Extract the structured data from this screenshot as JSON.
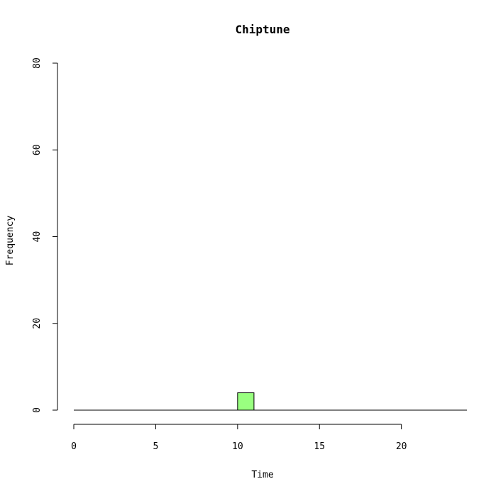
{
  "chart_data": {
    "type": "bar",
    "title": "Chiptune",
    "xlabel": "Time",
    "ylabel": "Frequency",
    "xlim": [
      0,
      24
    ],
    "ylim": [
      0,
      80
    ],
    "x_ticks": [
      0,
      5,
      10,
      15,
      20
    ],
    "y_ticks": [
      0,
      20,
      40,
      60,
      80
    ],
    "grid": false,
    "bar_color": "#99ff80",
    "bins": [
      {
        "x0": 10,
        "x1": 11,
        "value": 4
      }
    ]
  }
}
